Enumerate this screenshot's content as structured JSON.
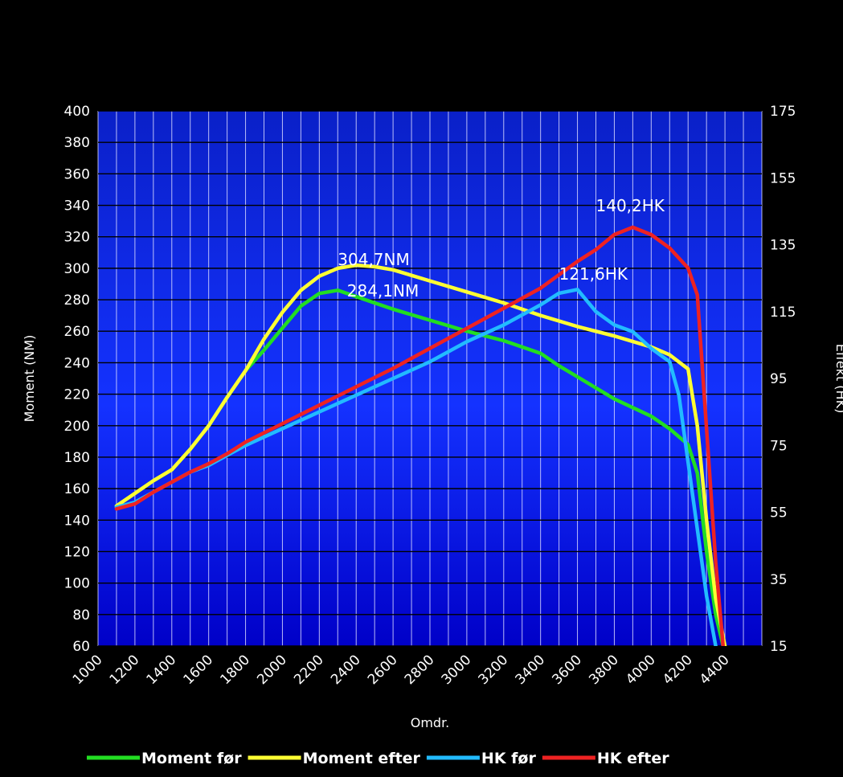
{
  "chart_data": {
    "type": "line",
    "xlabel": "Omdr.",
    "ylabel_left": "Moment (NM)",
    "ylabel_right": "Effekt (HK)",
    "x_ticks": [
      "1000",
      "1200",
      "1400",
      "1600",
      "1800",
      "2000",
      "2200",
      "2400",
      "2600",
      "2800",
      "3000",
      "3200",
      "3400",
      "3600",
      "3800",
      "4000",
      "4200",
      "4400"
    ],
    "y_left_ticks": [
      "400",
      "380",
      "360",
      "340",
      "320",
      "300",
      "280",
      "260",
      "240",
      "220",
      "200",
      "180",
      "160",
      "140",
      "120",
      "100",
      "80",
      "60"
    ],
    "y_right_ticks": [
      "175",
      "155",
      "135",
      "115",
      "95",
      "75",
      "55",
      "35",
      "15"
    ],
    "xlim": [
      1000,
      4600
    ],
    "ylim_left": [
      60,
      400
    ],
    "ylim_right": [
      15,
      175
    ],
    "grid": true,
    "legend_position": "bottom",
    "series": [
      {
        "name": "Moment før",
        "axis": "left",
        "color": "#22dd22",
        "points": [
          [
            1100,
            149
          ],
          [
            1200,
            157
          ],
          [
            1300,
            165
          ],
          [
            1400,
            172
          ],
          [
            1500,
            185
          ],
          [
            1600,
            200
          ],
          [
            1700,
            218
          ],
          [
            1800,
            235
          ],
          [
            1900,
            248
          ],
          [
            2000,
            262
          ],
          [
            2100,
            276
          ],
          [
            2200,
            284
          ],
          [
            2300,
            286
          ],
          [
            2400,
            282
          ],
          [
            2500,
            278
          ],
          [
            2600,
            274
          ],
          [
            2800,
            267
          ],
          [
            3000,
            260
          ],
          [
            3200,
            254
          ],
          [
            3400,
            246
          ],
          [
            3500,
            238
          ],
          [
            3600,
            231
          ],
          [
            3800,
            217
          ],
          [
            4000,
            206
          ],
          [
            4100,
            198
          ],
          [
            4200,
            188
          ],
          [
            4250,
            170
          ],
          [
            4300,
            120
          ],
          [
            4350,
            80
          ],
          [
            4390,
            60
          ]
        ]
      },
      {
        "name": "Moment efter",
        "axis": "left",
        "color": "#ffff33",
        "points": [
          [
            1100,
            149
          ],
          [
            1200,
            157
          ],
          [
            1300,
            165
          ],
          [
            1400,
            172
          ],
          [
            1500,
            185
          ],
          [
            1600,
            200
          ],
          [
            1700,
            218
          ],
          [
            1800,
            235
          ],
          [
            1900,
            255
          ],
          [
            2000,
            272
          ],
          [
            2100,
            286
          ],
          [
            2200,
            295
          ],
          [
            2300,
            300
          ],
          [
            2400,
            302
          ],
          [
            2500,
            301
          ],
          [
            2600,
            299
          ],
          [
            2800,
            292
          ],
          [
            3000,
            285
          ],
          [
            3200,
            278
          ],
          [
            3400,
            270
          ],
          [
            3600,
            263
          ],
          [
            3800,
            257
          ],
          [
            4000,
            250
          ],
          [
            4100,
            245
          ],
          [
            4200,
            236
          ],
          [
            4250,
            200
          ],
          [
            4300,
            140
          ],
          [
            4350,
            90
          ],
          [
            4400,
            60
          ]
        ]
      },
      {
        "name": "HK før",
        "axis": "right",
        "color": "#22bbff",
        "points": [
          [
            1100,
            56.5
          ],
          [
            1200,
            58
          ],
          [
            1300,
            61
          ],
          [
            1400,
            64
          ],
          [
            1500,
            67
          ],
          [
            1600,
            69
          ],
          [
            1700,
            72
          ],
          [
            1800,
            75
          ],
          [
            2000,
            80
          ],
          [
            2200,
            85
          ],
          [
            2400,
            90
          ],
          [
            2600,
            95
          ],
          [
            2800,
            100
          ],
          [
            3000,
            106
          ],
          [
            3200,
            111
          ],
          [
            3400,
            117
          ],
          [
            3500,
            120.5
          ],
          [
            3600,
            121.6
          ],
          [
            3700,
            115
          ],
          [
            3800,
            111
          ],
          [
            3900,
            109
          ],
          [
            4000,
            104
          ],
          [
            4100,
            100
          ],
          [
            4150,
            90
          ],
          [
            4200,
            70
          ],
          [
            4250,
            50
          ],
          [
            4300,
            30
          ],
          [
            4350,
            15
          ]
        ]
      },
      {
        "name": "HK efter",
        "axis": "right",
        "color": "#ee2222",
        "points": [
          [
            1100,
            56
          ],
          [
            1200,
            57.5
          ],
          [
            1300,
            61
          ],
          [
            1400,
            64
          ],
          [
            1500,
            67
          ],
          [
            1600,
            69.5
          ],
          [
            1700,
            72.5
          ],
          [
            1800,
            76
          ],
          [
            2000,
            81.5
          ],
          [
            2200,
            87
          ],
          [
            2400,
            92.5
          ],
          [
            2600,
            98
          ],
          [
            2800,
            104
          ],
          [
            3000,
            110
          ],
          [
            3200,
            116
          ],
          [
            3400,
            122
          ],
          [
            3600,
            130
          ],
          [
            3700,
            133.5
          ],
          [
            3800,
            138
          ],
          [
            3900,
            140.2
          ],
          [
            4000,
            138
          ],
          [
            4100,
            134
          ],
          [
            4200,
            128
          ],
          [
            4250,
            120
          ],
          [
            4300,
            80
          ],
          [
            4350,
            40
          ],
          [
            4390,
            15
          ]
        ]
      }
    ],
    "annotations": [
      {
        "text": "304,7NM",
        "x": 2300,
        "y": 302,
        "axis": "left"
      },
      {
        "text": "284,1NM",
        "x": 2350,
        "y": 282,
        "axis": "left"
      },
      {
        "text": "121,6HK",
        "x": 3500,
        "y": 124.5,
        "axis": "right"
      },
      {
        "text": "140,2HK",
        "x": 3700,
        "y": 145,
        "axis": "right"
      }
    ]
  }
}
